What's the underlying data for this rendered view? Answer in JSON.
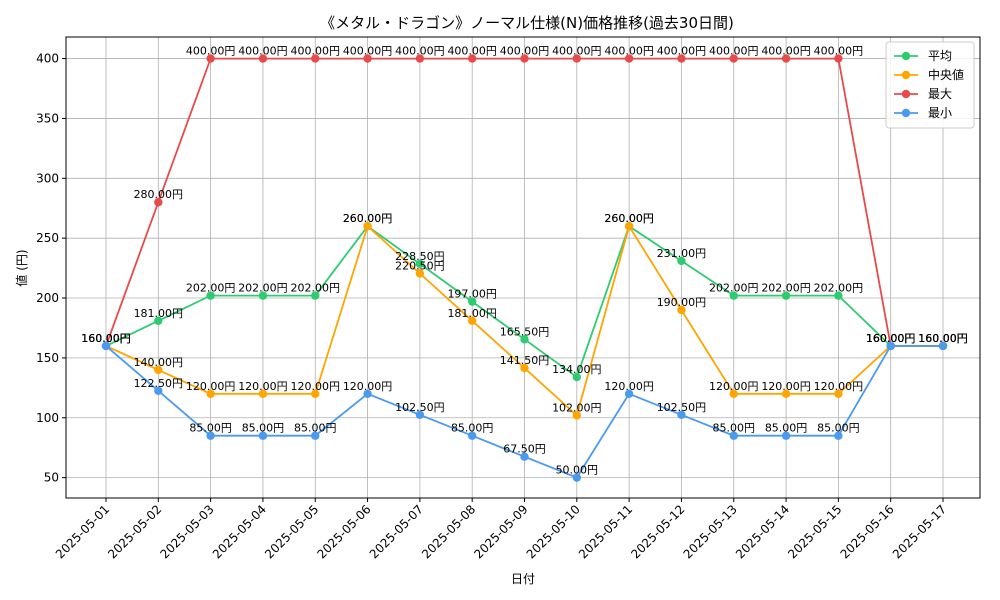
{
  "chart_data": {
    "type": "line",
    "title": "《メタル・ドラゴン》ノーマル仕様(N)価格推移(過去30日間)",
    "xlabel": "日付",
    "ylabel": "値 (円)",
    "ylim": [
      33,
      418
    ],
    "yticks": [
      50,
      100,
      150,
      200,
      250,
      300,
      350,
      400
    ],
    "grid": true,
    "legend_position": "top-right",
    "label_suffix": "円",
    "categories": [
      "2025-05-01",
      "2025-05-02",
      "2025-05-03",
      "2025-05-04",
      "2025-05-05",
      "2025-05-06",
      "2025-05-07",
      "2025-05-08",
      "2025-05-09",
      "2025-05-10",
      "2025-05-11",
      "2025-05-12",
      "2025-05-13",
      "2025-05-14",
      "2025-05-15",
      "2025-05-16",
      "2025-05-17"
    ],
    "series": [
      {
        "name": "平均",
        "color": "#2ecc71",
        "values": [
          160,
          181,
          202,
          202,
          202,
          260,
          228.5,
          197,
          165.5,
          134,
          260,
          231,
          202,
          202,
          202,
          160,
          160
        ]
      },
      {
        "name": "中央値",
        "color": "#ffa500",
        "values": [
          160,
          140,
          120,
          120,
          120,
          260,
          220.5,
          181,
          141.5,
          102,
          260,
          190,
          120,
          120,
          120,
          160,
          160
        ]
      },
      {
        "name": "最大",
        "color": "#e84a4a",
        "values": [
          160,
          280,
          400,
          400,
          400,
          400,
          400,
          400,
          400,
          400,
          400,
          400,
          400,
          400,
          400,
          160,
          160
        ]
      },
      {
        "name": "最小",
        "color": "#4a9af0",
        "values": [
          160,
          122.5,
          85,
          85,
          85,
          120,
          102.5,
          85,
          67.5,
          50,
          120,
          102.5,
          85,
          85,
          85,
          160,
          160
        ]
      }
    ]
  }
}
